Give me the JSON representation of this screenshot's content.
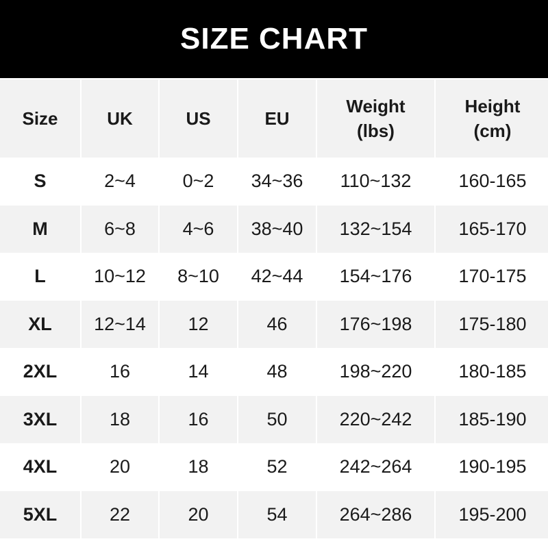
{
  "title": "SIZE CHART",
  "headers": [
    {
      "line1": "Size",
      "line2": ""
    },
    {
      "line1": "UK",
      "line2": ""
    },
    {
      "line1": "US",
      "line2": ""
    },
    {
      "line1": "EU",
      "line2": ""
    },
    {
      "line1": "Weight",
      "line2": "(lbs)"
    },
    {
      "line1": "Height",
      "line2": "(cm)"
    }
  ],
  "rows": [
    [
      "S",
      "2~4",
      "0~2",
      "34~36",
      "110~132",
      "160-165"
    ],
    [
      "M",
      "6~8",
      "4~6",
      "38~40",
      "132~154",
      "165-170"
    ],
    [
      "L",
      "10~12",
      "8~10",
      "42~44",
      "154~176",
      "170-175"
    ],
    [
      "XL",
      "12~14",
      "12",
      "46",
      "176~198",
      "175-180"
    ],
    [
      "2XL",
      "16",
      "14",
      "48",
      "198~220",
      "180-185"
    ],
    [
      "3XL",
      "18",
      "16",
      "50",
      "220~242",
      "185-190"
    ],
    [
      "4XL",
      "20",
      "18",
      "52",
      "242~264",
      "190-195"
    ],
    [
      "5XL",
      "22",
      "20",
      "54",
      "264~286",
      "195-200"
    ]
  ]
}
